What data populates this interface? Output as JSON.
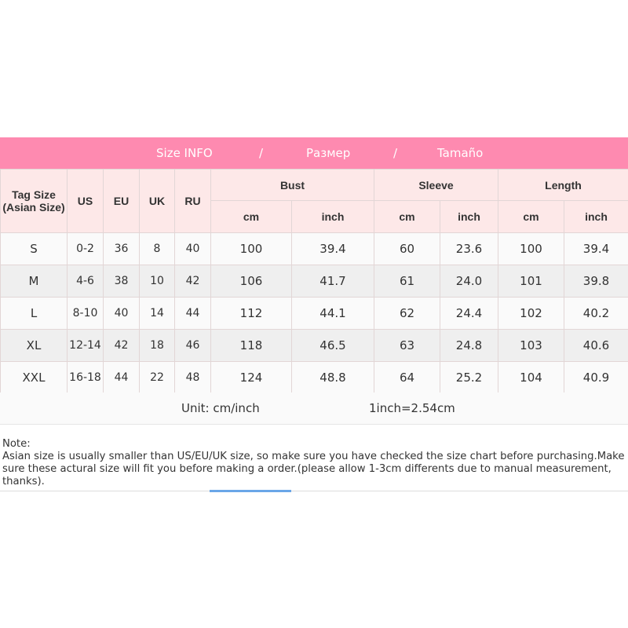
{
  "banner": {
    "parts": [
      "Size INFO",
      "/",
      "Размер",
      "/",
      "Tamaño"
    ]
  },
  "headers": {
    "tag_size": "Tag Size (Asian Size)",
    "us": "US",
    "eu": "EU",
    "uk": "UK",
    "ru": "RU",
    "bust": "Bust",
    "sleeve": "Sleeve",
    "length": "Length",
    "cm": "cm",
    "inch": "inch"
  },
  "rows": [
    [
      "S",
      "0-2",
      "36",
      "8",
      "40",
      "100",
      "39.4",
      "60",
      "23.6",
      "100",
      "39.4"
    ],
    [
      "M",
      "4-6",
      "38",
      "10",
      "42",
      "106",
      "41.7",
      "61",
      "24.0",
      "101",
      "39.8"
    ],
    [
      "L",
      "8-10",
      "40",
      "14",
      "44",
      "112",
      "44.1",
      "62",
      "24.4",
      "102",
      "40.2"
    ],
    [
      "XL",
      "12-14",
      "42",
      "18",
      "46",
      "118",
      "46.5",
      "63",
      "24.8",
      "103",
      "40.6"
    ],
    [
      "XXL",
      "16-18",
      "44",
      "22",
      "48",
      "124",
      "48.8",
      "64",
      "25.2",
      "104",
      "40.9"
    ]
  ],
  "unit": {
    "label": "Unit: cm/inch",
    "conversion": "1inch=2.54cm"
  },
  "note": {
    "title": "Note:",
    "text": "Asian size is usually smaller than US/EU/UK size, so make sure you have checked the size chart before purchasing.Make sure these actural size will fit you before making a order.(please allow 1-3cm differents due to manual measurement, thanks)."
  },
  "colors": {
    "banner": "#fe8ab0",
    "header": "#fde8e8",
    "accent_line": "#6aa6e8"
  }
}
